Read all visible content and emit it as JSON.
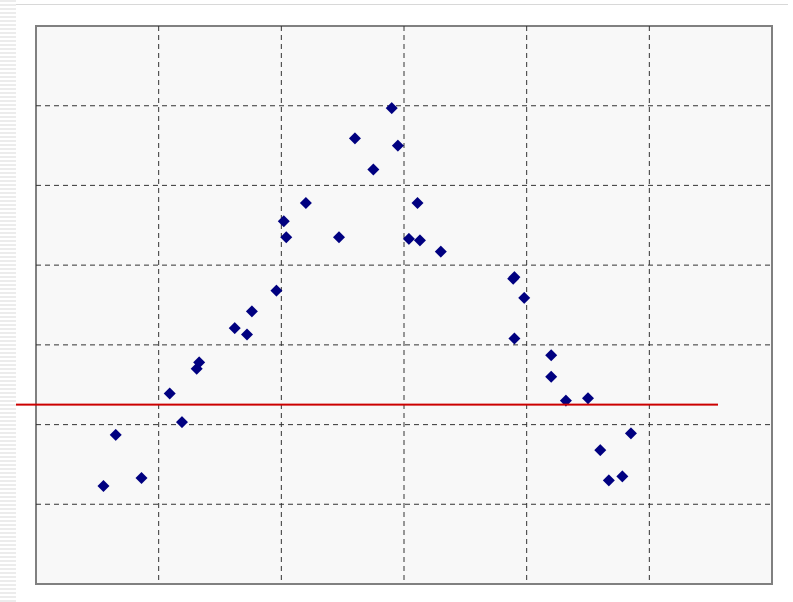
{
  "chart_data": {
    "type": "scatter",
    "title": "",
    "xlabel": "",
    "ylabel": "",
    "xlim": [
      0,
      6
    ],
    "ylim": [
      0,
      7
    ],
    "x_ticks": [
      1,
      2,
      3,
      4,
      5
    ],
    "y_ticks": [
      1,
      2,
      3,
      4,
      5,
      6
    ],
    "grid": true,
    "legend": "none",
    "colors": {
      "plot_background": "#f8f8f8",
      "plot_border": "#808080",
      "grid": "#333333",
      "points": "#000080",
      "reference_line": "#cc0000"
    },
    "series": [
      {
        "marker": "diamond",
        "points": [
          [
            0.55,
            1.23
          ],
          [
            0.65,
            1.87
          ],
          [
            0.86,
            1.33
          ],
          [
            1.09,
            2.39
          ],
          [
            1.19,
            2.03
          ],
          [
            1.31,
            2.7
          ],
          [
            1.33,
            2.78
          ],
          [
            1.62,
            3.21
          ],
          [
            1.72,
            3.13
          ],
          [
            1.76,
            3.42
          ],
          [
            1.96,
            3.68
          ],
          [
            2.02,
            4.55
          ],
          [
            2.04,
            4.35
          ],
          [
            2.2,
            4.78
          ],
          [
            2.47,
            4.35
          ],
          [
            2.6,
            5.59
          ],
          [
            2.75,
            5.2
          ],
          [
            2.9,
            5.97
          ],
          [
            2.95,
            5.5
          ],
          [
            3.04,
            4.33
          ],
          [
            3.11,
            4.78
          ],
          [
            3.13,
            4.31
          ],
          [
            3.3,
            4.17
          ],
          [
            3.89,
            3.83
          ],
          [
            3.9,
            3.85
          ],
          [
            3.98,
            3.59
          ],
          [
            3.9,
            3.08
          ],
          [
            4.2,
            2.87
          ],
          [
            4.2,
            2.6
          ],
          [
            4.32,
            2.3
          ],
          [
            4.5,
            2.33
          ],
          [
            4.6,
            1.68
          ],
          [
            4.67,
            1.3
          ],
          [
            4.78,
            1.35
          ],
          [
            4.85,
            1.89
          ]
        ]
      }
    ],
    "reference_line": {
      "y": 2.25
    }
  }
}
